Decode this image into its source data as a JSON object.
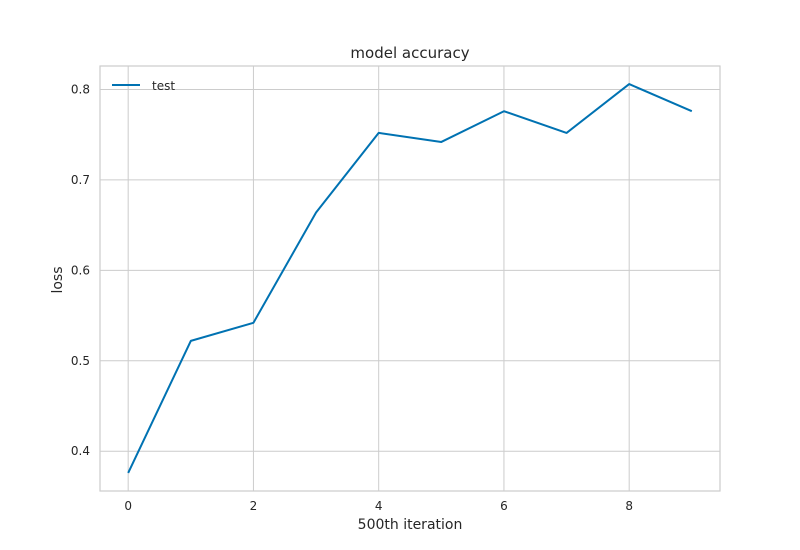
{
  "chart_data": {
    "type": "line",
    "title": "model accuracy",
    "xlabel": "500th iteration",
    "ylabel": "loss",
    "xlim": [
      -0.45,
      9.45
    ],
    "ylim": [
      0.356,
      0.826
    ],
    "x_ticks": [
      0,
      2,
      4,
      6,
      8
    ],
    "y_ticks": [
      0.4,
      0.5,
      0.6,
      0.7,
      0.8
    ],
    "x_tick_labels": [
      "0",
      "2",
      "4",
      "6",
      "8"
    ],
    "y_tick_labels": [
      "0.4",
      "0.5",
      "0.6",
      "0.7",
      "0.8"
    ],
    "grid": true,
    "legend_position": "upper-left",
    "series": [
      {
        "name": "test",
        "color": "#0072b2",
        "x": [
          0,
          1,
          2,
          3,
          4,
          5,
          6,
          7,
          8,
          9
        ],
        "y": [
          0.376,
          0.522,
          0.542,
          0.664,
          0.752,
          0.742,
          0.776,
          0.752,
          0.806,
          0.776
        ]
      }
    ]
  }
}
